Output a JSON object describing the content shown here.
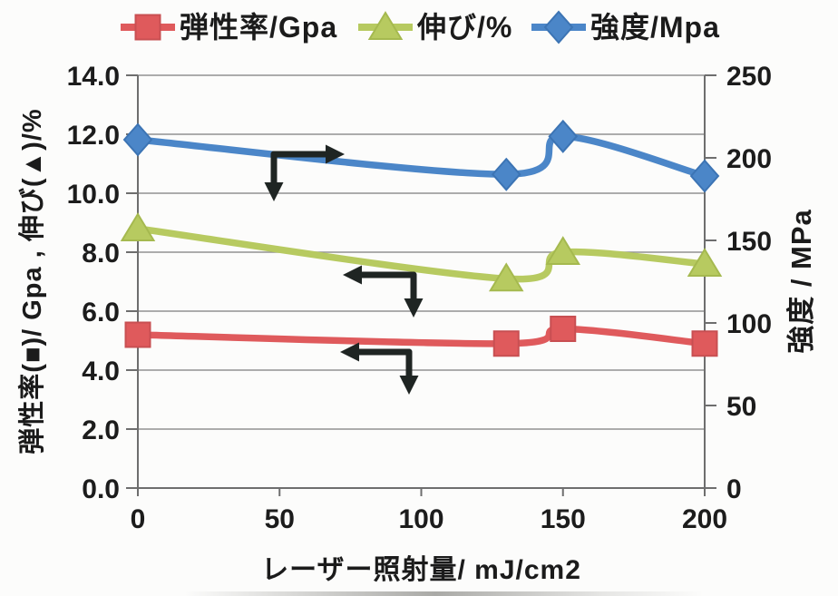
{
  "page": {
    "background": "#fcfcfb",
    "text_color": "#1c1c1c",
    "grid_color": "#919191",
    "axis_color": "#6e6e6e",
    "arrow_color": "#1f2523"
  },
  "legend": {
    "items": [
      {
        "label": "弾性率/Gpa",
        "marker": "square",
        "color": "#df5a5c",
        "edge": "#c84f52"
      },
      {
        "label": "伸び/%",
        "marker": "triangle",
        "color": "#b7ca60",
        "edge": "#a5b94f"
      },
      {
        "label": "強度/Mpa",
        "marker": "diamond",
        "color": "#4b86c8",
        "edge": "#3c74b4"
      }
    ]
  },
  "chart_data": {
    "type": "line",
    "x": [
      0,
      130,
      150,
      200
    ],
    "series": [
      {
        "name": "弾性率/Gpa",
        "axis": "left",
        "marker": "square",
        "color": "#df5a5c",
        "edge": "#c84f52",
        "values": [
          5.2,
          4.9,
          5.4,
          4.9
        ]
      },
      {
        "name": "伸び/%",
        "axis": "left",
        "marker": "triangle",
        "color": "#b7ca60",
        "edge": "#a5b94f",
        "values": [
          8.8,
          7.1,
          8.0,
          7.6
        ]
      },
      {
        "name": "強度/Mpa",
        "axis": "right",
        "marker": "diamond",
        "color": "#4b86c8",
        "edge": "#3c74b4",
        "values": [
          211,
          190,
          213,
          189
        ]
      }
    ],
    "xlabel": "レーザー照射量/ mJ/cm2",
    "ylabel_left": "弾性率(■)/ Gpa , 伸び(▲)/%",
    "ylabel_right": "強度 / MPa",
    "xlim": [
      0,
      200
    ],
    "ylim_left": [
      0,
      14
    ],
    "ylim_right": [
      0,
      250
    ],
    "x_tick_values": [
      0,
      50,
      100,
      150,
      200
    ],
    "x_tick_labels": [
      "0",
      "50",
      "100",
      "150",
      "200"
    ],
    "left_tick_values": [
      0,
      2,
      4,
      6,
      8,
      10,
      12,
      14
    ],
    "left_tick_labels": [
      "0.0",
      "2.0",
      "4.0",
      "6.0",
      "8.0",
      "10.0",
      "12.0",
      "14.0"
    ],
    "right_tick_values": [
      0,
      50,
      100,
      150,
      200,
      250
    ],
    "right_tick_labels": [
      "0",
      "50",
      "100",
      "150",
      "200",
      "250"
    ],
    "grid": "horizontal",
    "legend_position": "top",
    "smooth": true
  },
  "annotations": {
    "arrows": [
      {
        "corner": [
          302,
          170
        ],
        "tips": [
          [
            380,
            170
          ],
          [
            302,
            222
          ]
        ]
      },
      {
        "corner": [
          456,
          303
        ],
        "tips": [
          [
            378,
            303
          ],
          [
            456,
            350
          ]
        ]
      },
      {
        "corner": [
          451,
          388
        ],
        "tips": [
          [
            375,
            388
          ],
          [
            451,
            435
          ]
        ]
      }
    ]
  }
}
